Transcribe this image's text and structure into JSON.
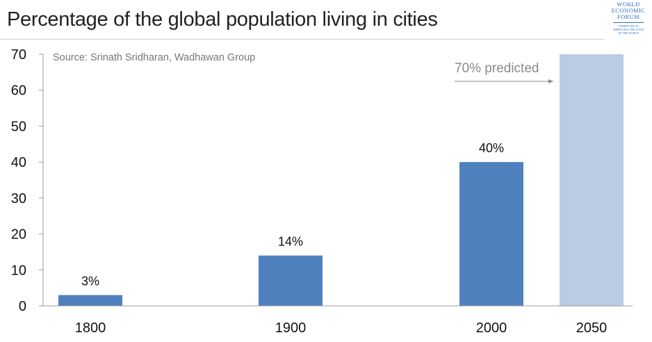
{
  "header": {
    "title": "Percentage of the global population living in cities"
  },
  "logo": {
    "line1": "WORLD",
    "line2": "ECONOMIC",
    "line3": "FORUM",
    "tagline1": "COMMITTED TO",
    "tagline2": "IMPROVING THE STATE",
    "tagline3": "OF THE WORLD"
  },
  "chart_data": {
    "type": "bar",
    "title": "Percentage of the global population living in cities",
    "categories": [
      "1800",
      "1900",
      "2000",
      "2050"
    ],
    "values": [
      3,
      14,
      40,
      70
    ],
    "data_labels": [
      "3%",
      "14%",
      "40%",
      ""
    ],
    "projected": [
      false,
      false,
      false,
      true
    ],
    "ylim": [
      0,
      70
    ],
    "yticks": [
      0,
      10,
      20,
      30,
      40,
      50,
      60,
      70
    ],
    "xlabel": "",
    "ylabel": "",
    "grid": false,
    "source": "Source: Srinath Sridharan, Wadhawan Group",
    "annotation": "70% predicted",
    "colors": {
      "actual": "#4e81bd",
      "projected": "#b9cce4",
      "axis": "#999999",
      "annotation": "#8a8a8a"
    }
  }
}
